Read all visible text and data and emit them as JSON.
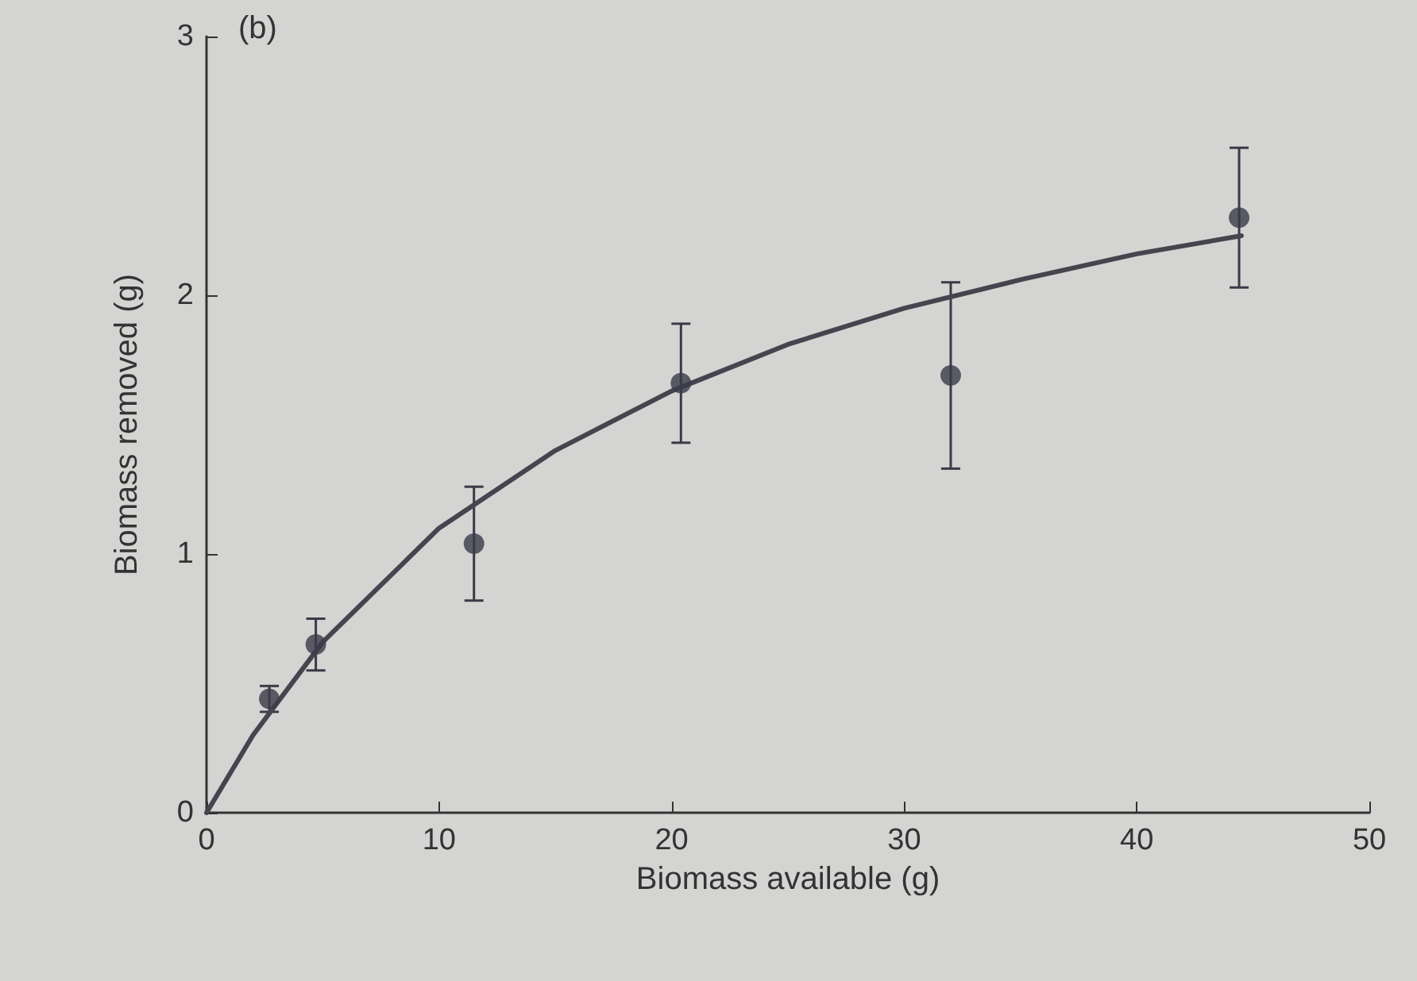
{
  "chart_data": {
    "type": "scatter",
    "xlabel": "Biomass available (g)",
    "ylabel": "Biomass removed (g)",
    "annotations": [
      "(b)"
    ],
    "xlim": [
      0,
      50
    ],
    "xticks": [
      0,
      10,
      20,
      30,
      40,
      50
    ],
    "ylim": [
      0,
      3
    ],
    "yticks": [
      0,
      1,
      2,
      3
    ],
    "grid": false,
    "series": [
      {
        "marker": "circle",
        "color": "#3a3a48",
        "x": [
          2.7,
          4.7,
          11.5,
          20.4,
          32,
          44.4
        ],
        "values": [
          0.44,
          0.65,
          1.04,
          1.66,
          1.69,
          2.3
        ],
        "errors": [
          0.05,
          0.1,
          0.22,
          0.23,
          0.36,
          0.27
        ]
      },
      {
        "type": "line",
        "marker": "none",
        "line_style": "solid",
        "color": "#45454f",
        "x": [
          0,
          2,
          5,
          10,
          15,
          20,
          25,
          30,
          35,
          40,
          44.5
        ],
        "values": [
          0,
          0.3,
          0.66,
          1.1,
          1.4,
          1.63,
          1.81,
          1.95,
          2.06,
          2.16,
          2.23
        ]
      }
    ]
  }
}
